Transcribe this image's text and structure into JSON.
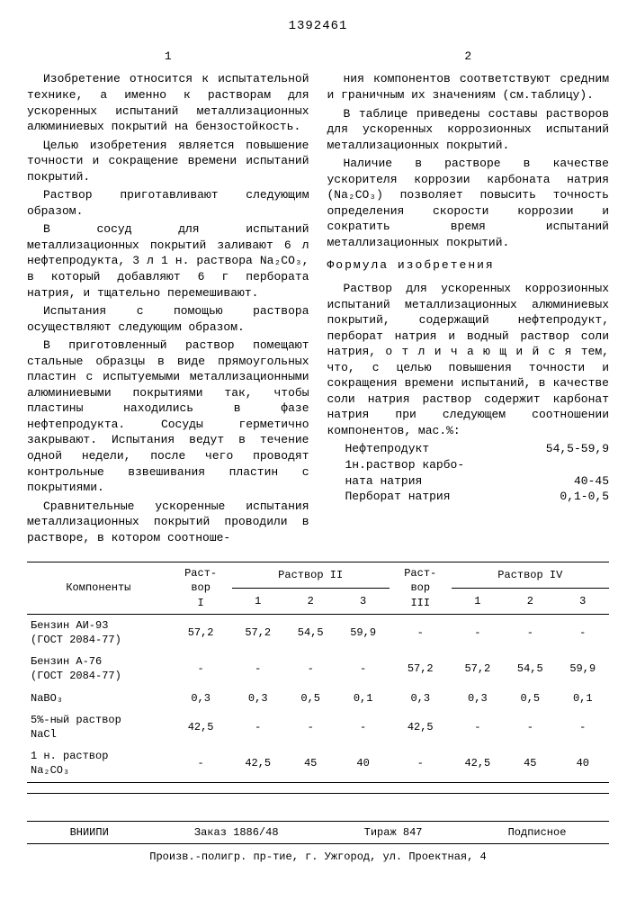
{
  "doc_number": "1392461",
  "col1_num": "1",
  "col2_num": "2",
  "line_nums": [
    "5",
    "10",
    "15",
    "20",
    "25",
    "30"
  ],
  "col1": {
    "p1": "Изобретение относится к испытательной технике, а именно к растворам для ускоренных испытаний металлизационных алюминиевых покрытий на бензостойкость.",
    "p2": "Целью изобретения является повышение точности и сокращение времени испытаний покрытий.",
    "p3": "Раствор приготавливают следующим образом.",
    "p4": "В сосуд для испытаний металлизационных покрытий заливают 6 л нефтепродукта, 3 л 1 н. раствора Na₂CO₃, в который добавляют 6 г пербората натрия, и тщательно перемешивают.",
    "p5": "Испытания с помощью раствора осуществляют следующим образом.",
    "p6": "В приготовленный раствор помещают стальные образцы в виде прямоугольных пластин с испытуемыми металлизационными алюминиевыми покрытиями так, чтобы пластины находились в фазе нефтепродукта. Сосуды герметично закрывают. Испытания ведут в течение одной недели, после чего проводят контрольные взвешивания пластин с покрытиями.",
    "p7": "Сравнительные ускоренные испытания металлизационных покрытий проводили в растворе, в котором соотноше-"
  },
  "col2": {
    "p1": "ния компонентов соответствуют средним и граничным их значениям (см.таблицу).",
    "p2": "В таблице приведены составы растворов для ускоренных коррозионных испытаний металлизационных покрытий.",
    "p3": "Наличие в растворе в качестве ускорителя коррозии карбоната натрия (Na₂CO₃) позволяет повысить точность определения скорости коррозии и сократить время испытаний металлизационных покрытий.",
    "formula_title": "Формула изобретения",
    "p4": "Раствор для ускоренных коррозионных испытаний металлизационных алюминиевых покрытий, содержащий нефтепродукт, перборат натрия и водный раствор соли натрия, о т л и ч а ю щ и й с я тем, что, с целью повышения точности и сокращения времени испытаний, в качестве соли натрия раствор содержит карбонат натрия при следующем соотношении компонентов, мас.%:",
    "ratios": [
      {
        "name": "Нефтепродукт",
        "val": "54,5-59,9"
      },
      {
        "name": "1н.раствор карбо-",
        "val": ""
      },
      {
        "name": "ната натрия",
        "val": "40-45"
      },
      {
        "name": "Перборат натрия",
        "val": "0,1-0,5"
      }
    ]
  },
  "table": {
    "headers": {
      "comp": "Компоненты",
      "r1": "Раст-\nвор\nI",
      "r2": "Раствор II",
      "r3": "Раст-\nвор\nIII",
      "r4": "Раствор IV",
      "sub": [
        "1",
        "2",
        "3",
        "1",
        "2",
        "3"
      ]
    },
    "rows": [
      {
        "name": "Бензин АИ-93\n(ГОСТ 2084-77)",
        "v": [
          "57,2",
          "57,2",
          "54,5",
          "59,9",
          "-",
          "-",
          "-",
          "-"
        ]
      },
      {
        "name": "Бензин А-76\n(ГОСТ 2084-77)",
        "v": [
          "-",
          "-",
          "-",
          "-",
          "57,2",
          "57,2",
          "54,5",
          "59,9"
        ]
      },
      {
        "name": "NaBO₃",
        "v": [
          "0,3",
          "0,3",
          "0,5",
          "0,1",
          "0,3",
          "0,3",
          "0,5",
          "0,1"
        ]
      },
      {
        "name": "5%-ный раствор\nNaCl",
        "v": [
          "42,5",
          "-",
          "-",
          "-",
          "42,5",
          "-",
          "-",
          "-"
        ]
      },
      {
        "name": "1 н. раствор\nNa₂CO₃",
        "v": [
          "-",
          "42,5",
          "45",
          "40",
          "-",
          "42,5",
          "45",
          "40"
        ]
      }
    ]
  },
  "footer": {
    "org": "ВНИИПИ",
    "order": "Заказ 1886/48",
    "tirazh": "Тираж 847",
    "sub": "Подписное",
    "addr": "Произв.-полигр. пр-тие, г. Ужгород, ул. Проектная, 4"
  }
}
